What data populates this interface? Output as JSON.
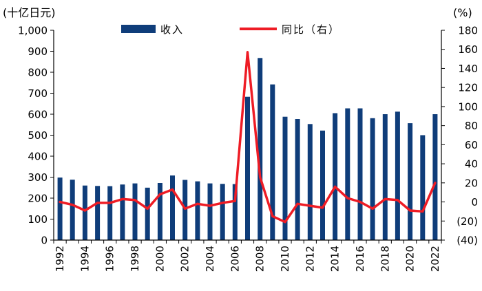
{
  "chart_data": {
    "type": "bar+line",
    "title": "",
    "left_unit": "(十亿日元)",
    "right_unit": "(%)",
    "left_axis": {
      "min": 0,
      "max": 1000,
      "step": 100,
      "tick_labels": [
        "0",
        "100",
        "200",
        "300",
        "400",
        "500",
        "600",
        "700",
        "800",
        "900",
        "1,000"
      ]
    },
    "right_axis": {
      "min": -40,
      "max": 180,
      "step": 20,
      "tick_labels": [
        "(40)",
        "(20)",
        "0",
        "20",
        "40",
        "60",
        "80",
        "100",
        "120",
        "140",
        "160",
        "180"
      ]
    },
    "x_tick_labels": [
      "1992",
      "1994",
      "1996",
      "1998",
      "2000",
      "2002",
      "2004",
      "2006",
      "2008",
      "2010",
      "2012",
      "2014",
      "2016",
      "2018",
      "2020",
      "2022"
    ],
    "categories": [
      "1992",
      "1993",
      "1994",
      "1995",
      "1996",
      "1997",
      "1998",
      "1999",
      "2000",
      "2001",
      "2002",
      "2003",
      "2004",
      "2005",
      "2006",
      "2007",
      "2008",
      "2009",
      "2010",
      "2011",
      "2012",
      "2013",
      "2014",
      "2015",
      "2016",
      "2017",
      "2018",
      "2019",
      "2020",
      "2021",
      "2022"
    ],
    "series": [
      {
        "name": "收入",
        "axis": "left",
        "type": "bar",
        "color": "#0f3d7a",
        "values": [
          298,
          288,
          260,
          258,
          257,
          265,
          270,
          250,
          272,
          308,
          287,
          280,
          270,
          268,
          267,
          683,
          868,
          742,
          588,
          577,
          553,
          522,
          605,
          628,
          628,
          581,
          600,
          612,
          557,
          500,
          600
        ]
      },
      {
        "name": "同比（右）",
        "axis": "right",
        "type": "line",
        "color": "#ee1c25",
        "values": [
          0,
          -3,
          -9,
          -1,
          -1,
          3,
          2,
          -7,
          8,
          13,
          -7,
          -2,
          -4,
          -1,
          1,
          157,
          26,
          -15,
          -21,
          -2,
          -4,
          -6,
          16,
          4,
          0,
          -7,
          3,
          2,
          -9,
          -10,
          20
        ]
      }
    ]
  }
}
